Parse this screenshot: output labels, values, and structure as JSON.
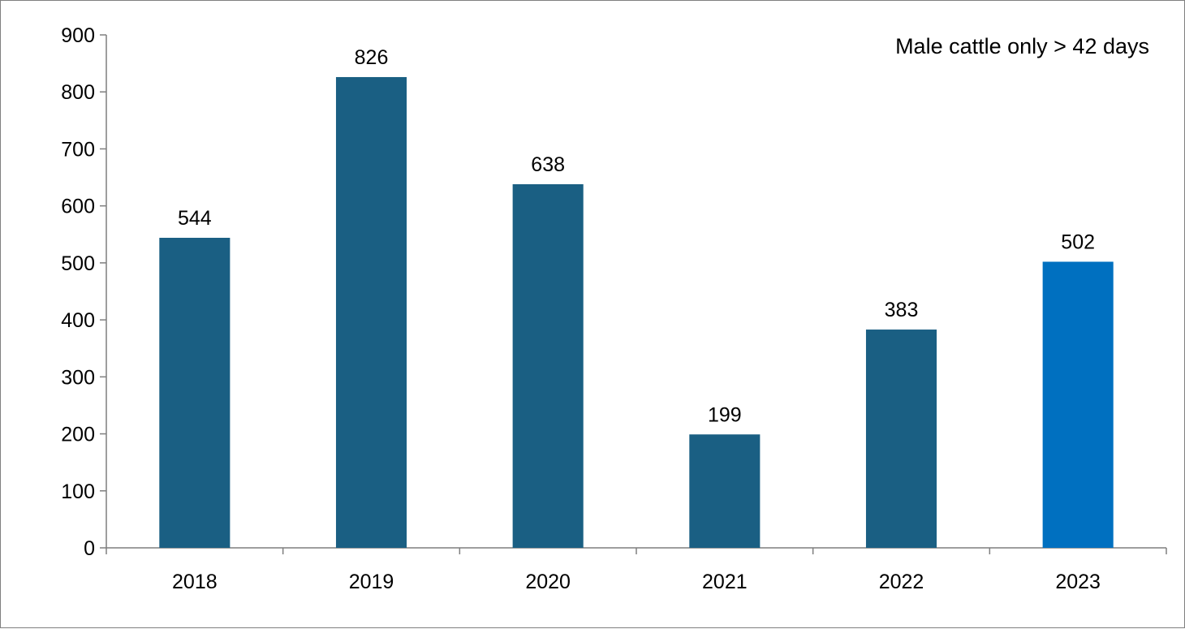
{
  "chart_data": {
    "type": "bar",
    "categories": [
      "2018",
      "2019",
      "2020",
      "2021",
      "2022",
      "2023"
    ],
    "values": [
      544,
      826,
      638,
      199,
      383,
      502
    ],
    "data_labels": [
      "544",
      "826",
      "638",
      "199",
      "383",
      "502"
    ],
    "ylim": [
      0,
      900
    ],
    "y_ticks": [
      0,
      100,
      200,
      300,
      400,
      500,
      600,
      700,
      800,
      900
    ],
    "y_tick_labels": [
      "0",
      "100",
      "200",
      "300",
      "400",
      "500",
      "600",
      "700",
      "800",
      "900"
    ],
    "annotation": "Male cattle only > 42 days",
    "annotation_position": "top-right",
    "grid": false,
    "legend": "none",
    "colors": {
      "bar": "#1a5f83",
      "highlight_bar": "#0070c0",
      "axis": "#7f7f7f"
    },
    "highlight_category": "2023"
  }
}
